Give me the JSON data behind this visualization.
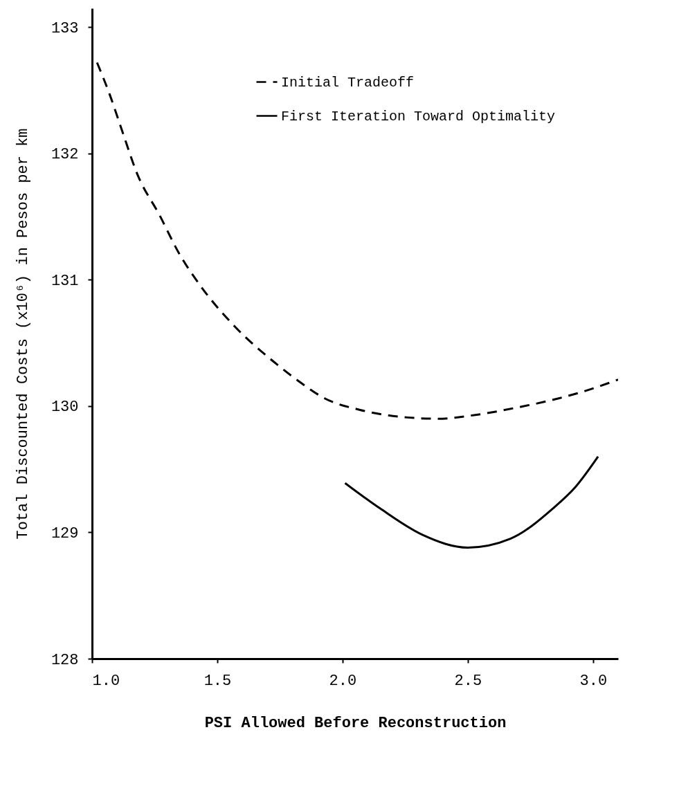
{
  "chart_data": {
    "type": "line",
    "xlabel": "PSI Allowed Before Reconstruction",
    "ylabel": "Total Discounted Costs (x10⁶) in Pesos per km",
    "xlim": [
      1.0,
      3.1
    ],
    "ylim": [
      128,
      133.15
    ],
    "xticks": [
      {
        "value": 1,
        "label": "1.0"
      },
      1.5,
      {
        "value": 2,
        "label": "2.0"
      },
      2.5,
      {
        "value": 3,
        "label": "3.0"
      }
    ],
    "yticks": [
      128,
      129,
      130,
      131,
      132,
      133
    ],
    "grid": false,
    "legend": "top right",
    "marker": "none",
    "series": [
      {
        "name": "Initial Tradeoff",
        "color": "#000000",
        "line_style": "dashed",
        "x": [
          1.02,
          1.07,
          1.12,
          1.18,
          1.27,
          1.35,
          1.43,
          1.57,
          1.72,
          1.83,
          1.93,
          2.07,
          2.26,
          2.38,
          2.53,
          2.7,
          2.86,
          3.0,
          3.1
        ],
        "values": [
          132.72,
          132.47,
          132.18,
          131.84,
          131.51,
          131.2,
          130.96,
          130.63,
          130.36,
          130.19,
          130.06,
          129.97,
          129.91,
          129.9,
          129.93,
          129.99,
          130.06,
          130.14,
          130.21
        ]
      },
      {
        "name": "First Iteration Toward Optimality",
        "color": "#000000",
        "line_style": "solid",
        "x": [
          2.01,
          2.15,
          2.32,
          2.5,
          2.67,
          2.84,
          2.93,
          3.02
        ],
        "values": [
          129.39,
          129.19,
          128.98,
          128.88,
          128.95,
          129.19,
          129.36,
          129.6
        ]
      }
    ]
  }
}
